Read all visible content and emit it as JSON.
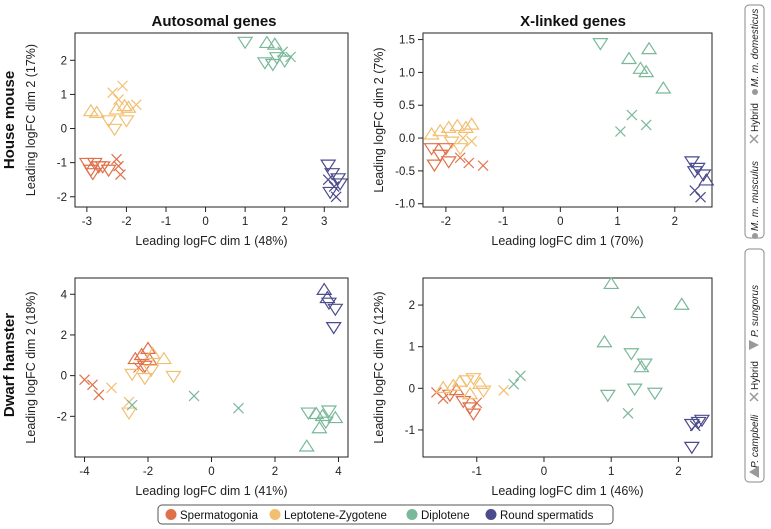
{
  "rows": [
    {
      "label": "House mouse",
      "legend": {
        "left": "M. m. musculus",
        "middle": "Hybrid",
        "right": "M. m. domesticus"
      }
    },
    {
      "label": "Dwarf hamster",
      "legend": {
        "left": "P. campbelli",
        "middle": "Hybrid",
        "right": "P. sungorus"
      }
    }
  ],
  "columns": [
    "Autosomal genes",
    "X-linked genes"
  ],
  "colors": {
    "Spermatogonia": "#e0704a",
    "Leptotene-Zygotene": "#f2bf70",
    "Diplotene": "#7ab89a",
    "Round spermatids": "#4a4a8c",
    "legend_symbol": "#999999",
    "axis": "#222222"
  },
  "legend": {
    "items": [
      {
        "label": "Spermatogonia",
        "color": "#e0704a"
      },
      {
        "label": "Leptotene-Zygotene",
        "color": "#f2bf70"
      },
      {
        "label": "Diplotene",
        "color": "#7ab89a"
      },
      {
        "label": "Round spermatids",
        "color": "#4a4a8c"
      }
    ]
  },
  "chart_data": [
    {
      "type": "scatter",
      "title": "Autosomal genes",
      "row": "House mouse",
      "xlabel": "Leading logFC dim 1 (48%)",
      "ylabel": "Leading logFC dim 2 (17%)",
      "xlim": [
        -3.3,
        3.6
      ],
      "ylim": [
        -2.3,
        2.8
      ],
      "xticks": [
        -3,
        -2,
        -1,
        0,
        1,
        2,
        3
      ],
      "yticks": [
        -2,
        -1,
        0,
        1,
        2
      ],
      "points": [
        {
          "x": -3.0,
          "y": -1.0,
          "g": "Spermatogonia",
          "m": "down"
        },
        {
          "x": -2.9,
          "y": -1.2,
          "g": "Spermatogonia",
          "m": "down"
        },
        {
          "x": -2.8,
          "y": -1.0,
          "g": "Spermatogonia",
          "m": "down"
        },
        {
          "x": -2.7,
          "y": -1.1,
          "g": "Spermatogonia",
          "m": "down"
        },
        {
          "x": -2.6,
          "y": -1.1,
          "g": "Spermatogonia",
          "m": "down"
        },
        {
          "x": -2.45,
          "y": -1.2,
          "g": "Spermatogonia",
          "m": "down"
        },
        {
          "x": -2.25,
          "y": -0.9,
          "g": "Spermatogonia",
          "m": "x"
        },
        {
          "x": -2.2,
          "y": -1.1,
          "g": "Spermatogonia",
          "m": "x"
        },
        {
          "x": -2.15,
          "y": -1.35,
          "g": "Spermatogonia",
          "m": "x"
        },
        {
          "x": -2.85,
          "y": -1.3,
          "g": "Spermatogonia",
          "m": "down"
        },
        {
          "x": -2.9,
          "y": 0.5,
          "g": "Leptotene-Zygotene",
          "m": "up"
        },
        {
          "x": -2.75,
          "y": 0.45,
          "g": "Leptotene-Zygotene",
          "m": "up"
        },
        {
          "x": -2.35,
          "y": 1.05,
          "g": "Leptotene-Zygotene",
          "m": "x"
        },
        {
          "x": -2.1,
          "y": 1.25,
          "g": "Leptotene-Zygotene",
          "m": "x"
        },
        {
          "x": -2.2,
          "y": 0.85,
          "g": "Leptotene-Zygotene",
          "m": "x"
        },
        {
          "x": -2.05,
          "y": 0.65,
          "g": "Leptotene-Zygotene",
          "m": "up"
        },
        {
          "x": -2.25,
          "y": 0.55,
          "g": "Leptotene-Zygotene",
          "m": "up"
        },
        {
          "x": -1.95,
          "y": 0.6,
          "g": "Leptotene-Zygotene",
          "m": "up"
        },
        {
          "x": -1.75,
          "y": 0.7,
          "g": "Leptotene-Zygotene",
          "m": "x"
        },
        {
          "x": -2.3,
          "y": 0.0,
          "g": "Leptotene-Zygotene",
          "m": "down"
        },
        {
          "x": -2.0,
          "y": 0.25,
          "g": "Leptotene-Zygotene",
          "m": "down"
        },
        {
          "x": -2.45,
          "y": 0.25,
          "g": "Leptotene-Zygotene",
          "m": "down"
        },
        {
          "x": 1.0,
          "y": 2.55,
          "g": "Diplotene",
          "m": "down"
        },
        {
          "x": 1.5,
          "y": 1.95,
          "g": "Diplotene",
          "m": "down"
        },
        {
          "x": 1.55,
          "y": 2.5,
          "g": "Diplotene",
          "m": "up"
        },
        {
          "x": 1.75,
          "y": 2.45,
          "g": "Diplotene",
          "m": "up"
        },
        {
          "x": 1.8,
          "y": 2.1,
          "g": "Diplotene",
          "m": "down"
        },
        {
          "x": 1.95,
          "y": 2.25,
          "g": "Diplotene",
          "m": "x"
        },
        {
          "x": 2.0,
          "y": 2.0,
          "g": "Diplotene",
          "m": "down"
        },
        {
          "x": 1.7,
          "y": 1.9,
          "g": "Diplotene",
          "m": "down"
        },
        {
          "x": 2.15,
          "y": 2.1,
          "g": "Diplotene",
          "m": "x"
        },
        {
          "x": 3.1,
          "y": -1.05,
          "g": "Round spermatids",
          "m": "down"
        },
        {
          "x": 3.2,
          "y": -1.3,
          "g": "Round spermatids",
          "m": "down"
        },
        {
          "x": 3.35,
          "y": -1.45,
          "g": "Round spermatids",
          "m": "down"
        },
        {
          "x": 3.1,
          "y": -1.5,
          "g": "Round spermatids",
          "m": "x"
        },
        {
          "x": 3.25,
          "y": -1.7,
          "g": "Round spermatids",
          "m": "x"
        },
        {
          "x": 3.15,
          "y": -1.85,
          "g": "Round spermatids",
          "m": "down"
        },
        {
          "x": 3.3,
          "y": -2.0,
          "g": "Round spermatids",
          "m": "x"
        },
        {
          "x": 3.4,
          "y": -1.6,
          "g": "Round spermatids",
          "m": "down"
        }
      ]
    },
    {
      "type": "scatter",
      "title": "X-linked genes",
      "row": "House mouse",
      "xlabel": "Leading logFC dim 1 (70%)",
      "ylabel": "Leading logFC dim 2 (7%)",
      "xlim": [
        -2.4,
        2.65
      ],
      "ylim": [
        -1.05,
        1.6
      ],
      "xticks": [
        -2,
        -1,
        0,
        1,
        2
      ],
      "yticks": [
        -1.0,
        -0.5,
        0.0,
        0.5,
        1.0,
        1.5
      ],
      "ytick_labels": [
        "-1.0",
        "-0.5",
        "0.0",
        "0.5",
        "1.0",
        "1.5"
      ],
      "points": [
        {
          "x": -2.25,
          "y": 0.05,
          "g": "Leptotene-Zygotene",
          "m": "up"
        },
        {
          "x": -2.1,
          "y": 0.1,
          "g": "Leptotene-Zygotene",
          "m": "up"
        },
        {
          "x": -1.95,
          "y": 0.15,
          "g": "Leptotene-Zygotene",
          "m": "up"
        },
        {
          "x": -1.8,
          "y": 0.18,
          "g": "Leptotene-Zygotene",
          "m": "up"
        },
        {
          "x": -1.65,
          "y": 0.15,
          "g": "Leptotene-Zygotene",
          "m": "up"
        },
        {
          "x": -1.55,
          "y": 0.2,
          "g": "Leptotene-Zygotene",
          "m": "up"
        },
        {
          "x": -1.7,
          "y": 0.0,
          "g": "Leptotene-Zygotene",
          "m": "x"
        },
        {
          "x": -1.55,
          "y": -0.05,
          "g": "Leptotene-Zygotene",
          "m": "x"
        },
        {
          "x": -1.9,
          "y": -0.05,
          "g": "Leptotene-Zygotene",
          "m": "down"
        },
        {
          "x": -1.75,
          "y": -0.15,
          "g": "Leptotene-Zygotene",
          "m": "down"
        },
        {
          "x": -2.25,
          "y": -0.15,
          "g": "Spermatogonia",
          "m": "down"
        },
        {
          "x": -2.1,
          "y": -0.25,
          "g": "Spermatogonia",
          "m": "down"
        },
        {
          "x": -1.95,
          "y": -0.35,
          "g": "Spermatogonia",
          "m": "down"
        },
        {
          "x": -2.0,
          "y": -0.15,
          "g": "Spermatogonia",
          "m": "down"
        },
        {
          "x": -1.75,
          "y": -0.3,
          "g": "Spermatogonia",
          "m": "x"
        },
        {
          "x": -1.6,
          "y": -0.38,
          "g": "Spermatogonia",
          "m": "x"
        },
        {
          "x": -1.35,
          "y": -0.42,
          "g": "Spermatogonia",
          "m": "x"
        },
        {
          "x": -2.2,
          "y": -0.4,
          "g": "Spermatogonia",
          "m": "down"
        },
        {
          "x": 0.7,
          "y": 1.45,
          "g": "Diplotene",
          "m": "down"
        },
        {
          "x": 1.55,
          "y": 1.35,
          "g": "Diplotene",
          "m": "up"
        },
        {
          "x": 1.2,
          "y": 1.2,
          "g": "Diplotene",
          "m": "up"
        },
        {
          "x": 1.4,
          "y": 1.05,
          "g": "Diplotene",
          "m": "up"
        },
        {
          "x": 1.5,
          "y": 1.0,
          "g": "Diplotene",
          "m": "up"
        },
        {
          "x": 1.8,
          "y": 0.75,
          "g": "Diplotene",
          "m": "up"
        },
        {
          "x": 1.25,
          "y": 0.35,
          "g": "Diplotene",
          "m": "x"
        },
        {
          "x": 1.5,
          "y": 0.2,
          "g": "Diplotene",
          "m": "x"
        },
        {
          "x": 1.05,
          "y": 0.1,
          "g": "Diplotene",
          "m": "x"
        },
        {
          "x": 2.3,
          "y": -0.35,
          "g": "Round spermatids",
          "m": "down"
        },
        {
          "x": 2.4,
          "y": -0.45,
          "g": "Round spermatids",
          "m": "down"
        },
        {
          "x": 2.5,
          "y": -0.55,
          "g": "Round spermatids",
          "m": "down"
        },
        {
          "x": 2.35,
          "y": -0.5,
          "g": "Round spermatids",
          "m": "down"
        },
        {
          "x": 2.55,
          "y": -0.65,
          "g": "Round spermatids",
          "m": "up"
        },
        {
          "x": 2.35,
          "y": -0.8,
          "g": "Round spermatids",
          "m": "x"
        },
        {
          "x": 2.45,
          "y": -0.9,
          "g": "Round spermatids",
          "m": "x"
        }
      ]
    },
    {
      "type": "scatter",
      "title": "Autosomal genes",
      "row": "Dwarf hamster",
      "xlabel": "Leading logFC dim 1 (41%)",
      "ylabel": "Leading logFC dim 2 (18%)",
      "xlim": [
        -4.3,
        4.3
      ],
      "ylim": [
        -4.0,
        4.8
      ],
      "xticks": [
        -4,
        -2,
        0,
        2,
        4
      ],
      "yticks": [
        -2,
        0,
        2,
        4
      ],
      "points": [
        {
          "x": -4.0,
          "y": -0.2,
          "g": "Spermatogonia",
          "m": "x"
        },
        {
          "x": -3.75,
          "y": -0.45,
          "g": "Spermatogonia",
          "m": "x"
        },
        {
          "x": -3.55,
          "y": -0.95,
          "g": "Spermatogonia",
          "m": "x"
        },
        {
          "x": -3.15,
          "y": -0.6,
          "g": "Leptotene-Zygotene",
          "m": "x"
        },
        {
          "x": -2.6,
          "y": -1.3,
          "g": "Leptotene-Zygotene",
          "m": "x"
        },
        {
          "x": -2.6,
          "y": -1.8,
          "g": "Leptotene-Zygotene",
          "m": "down"
        },
        {
          "x": -2.5,
          "y": -1.45,
          "g": "Diplotene",
          "m": "x"
        },
        {
          "x": -2.4,
          "y": 0.8,
          "g": "Spermatogonia",
          "m": "up"
        },
        {
          "x": -2.2,
          "y": 1.0,
          "g": "Spermatogonia",
          "m": "up"
        },
        {
          "x": -2.0,
          "y": 1.3,
          "g": "Spermatogonia",
          "m": "up"
        },
        {
          "x": -2.1,
          "y": 0.5,
          "g": "Spermatogonia",
          "m": "down"
        },
        {
          "x": -1.95,
          "y": 0.75,
          "g": "Spermatogonia",
          "m": "up"
        },
        {
          "x": -2.3,
          "y": 0.4,
          "g": "Spermatogonia",
          "m": "x"
        },
        {
          "x": -1.85,
          "y": 1.05,
          "g": "Leptotene-Zygotene",
          "m": "up"
        },
        {
          "x": -2.5,
          "y": 0.1,
          "g": "Leptotene-Zygotene",
          "m": "down"
        },
        {
          "x": -1.9,
          "y": 0.3,
          "g": "Leptotene-Zygotene",
          "m": "down"
        },
        {
          "x": -1.5,
          "y": 0.8,
          "g": "Leptotene-Zygotene",
          "m": "up"
        },
        {
          "x": -2.1,
          "y": -0.1,
          "g": "Leptotene-Zygotene",
          "m": "down"
        },
        {
          "x": -1.2,
          "y": 0.0,
          "g": "Leptotene-Zygotene",
          "m": "down"
        },
        {
          "x": -0.55,
          "y": -1.0,
          "g": "Diplotene",
          "m": "x"
        },
        {
          "x": 0.85,
          "y": -1.6,
          "g": "Diplotene",
          "m": "x"
        },
        {
          "x": 3.05,
          "y": -1.8,
          "g": "Diplotene",
          "m": "down"
        },
        {
          "x": 3.3,
          "y": -1.9,
          "g": "Diplotene",
          "m": "up"
        },
        {
          "x": 3.5,
          "y": -2.0,
          "g": "Diplotene",
          "m": "up"
        },
        {
          "x": 3.7,
          "y": -1.7,
          "g": "Diplotene",
          "m": "down"
        },
        {
          "x": 3.9,
          "y": -2.1,
          "g": "Diplotene",
          "m": "up"
        },
        {
          "x": 3.4,
          "y": -2.6,
          "g": "Diplotene",
          "m": "up"
        },
        {
          "x": 3.6,
          "y": -2.25,
          "g": "Diplotene",
          "m": "down"
        },
        {
          "x": 3.0,
          "y": -3.5,
          "g": "Diplotene",
          "m": "up"
        },
        {
          "x": 3.55,
          "y": 4.2,
          "g": "Round spermatids",
          "m": "up"
        },
        {
          "x": 3.65,
          "y": 3.8,
          "g": "Round spermatids",
          "m": "up"
        },
        {
          "x": 3.7,
          "y": 3.6,
          "g": "Round spermatids",
          "m": "down"
        },
        {
          "x": 3.9,
          "y": 3.3,
          "g": "Round spermatids",
          "m": "down"
        },
        {
          "x": 3.85,
          "y": 2.4,
          "g": "Round spermatids",
          "m": "down"
        }
      ]
    },
    {
      "type": "scatter",
      "title": "X-linked genes",
      "row": "Dwarf hamster",
      "xlabel": "Leading logFC dim 1 (46%)",
      "ylabel": "Leading logFC dim 2 (12%)",
      "xlim": [
        -1.8,
        2.5
      ],
      "ylim": [
        -1.65,
        2.65
      ],
      "xticks": [
        -1,
        0,
        1,
        2
      ],
      "yticks": [
        -1,
        0,
        1,
        2
      ],
      "points": [
        {
          "x": -1.6,
          "y": -0.1,
          "g": "Spermatogonia",
          "m": "x"
        },
        {
          "x": -1.5,
          "y": -0.25,
          "g": "Spermatogonia",
          "m": "x"
        },
        {
          "x": -1.4,
          "y": -0.15,
          "g": "Spermatogonia",
          "m": "down"
        },
        {
          "x": -1.3,
          "y": -0.05,
          "g": "Spermatogonia",
          "m": "up"
        },
        {
          "x": -1.2,
          "y": -0.3,
          "g": "Spermatogonia",
          "m": "down"
        },
        {
          "x": -1.1,
          "y": -0.45,
          "g": "Spermatogonia",
          "m": "down"
        },
        {
          "x": -1.0,
          "y": -0.35,
          "g": "Spermatogonia",
          "m": "x"
        },
        {
          "x": -1.05,
          "y": -0.6,
          "g": "Spermatogonia",
          "m": "down"
        },
        {
          "x": -1.5,
          "y": 0.0,
          "g": "Leptotene-Zygotene",
          "m": "up"
        },
        {
          "x": -1.35,
          "y": 0.05,
          "g": "Leptotene-Zygotene",
          "m": "up"
        },
        {
          "x": -1.25,
          "y": 0.15,
          "g": "Leptotene-Zygotene",
          "m": "up"
        },
        {
          "x": -1.15,
          "y": 0.2,
          "g": "Leptotene-Zygotene",
          "m": "down"
        },
        {
          "x": -1.05,
          "y": 0.25,
          "g": "Leptotene-Zygotene",
          "m": "down"
        },
        {
          "x": -0.95,
          "y": 0.1,
          "g": "Leptotene-Zygotene",
          "m": "up"
        },
        {
          "x": -0.9,
          "y": -0.05,
          "g": "Leptotene-Zygotene",
          "m": "down"
        },
        {
          "x": -1.1,
          "y": -0.15,
          "g": "Leptotene-Zygotene",
          "m": "up"
        },
        {
          "x": -0.6,
          "y": -0.05,
          "g": "Leptotene-Zygotene",
          "m": "x"
        },
        {
          "x": -0.45,
          "y": 0.1,
          "g": "Diplotene",
          "m": "x"
        },
        {
          "x": -0.35,
          "y": 0.3,
          "g": "Diplotene",
          "m": "x"
        },
        {
          "x": 1.0,
          "y": 2.5,
          "g": "Diplotene",
          "m": "up"
        },
        {
          "x": 2.05,
          "y": 2.0,
          "g": "Diplotene",
          "m": "up"
        },
        {
          "x": 0.9,
          "y": 1.1,
          "g": "Diplotene",
          "m": "up"
        },
        {
          "x": 1.4,
          "y": 1.8,
          "g": "Diplotene",
          "m": "up"
        },
        {
          "x": 1.3,
          "y": 0.85,
          "g": "Diplotene",
          "m": "down"
        },
        {
          "x": 1.45,
          "y": 0.5,
          "g": "Diplotene",
          "m": "up"
        },
        {
          "x": 1.5,
          "y": 0.6,
          "g": "Diplotene",
          "m": "down"
        },
        {
          "x": 0.95,
          "y": -0.15,
          "g": "Diplotene",
          "m": "down"
        },
        {
          "x": 1.35,
          "y": 0.0,
          "g": "Diplotene",
          "m": "down"
        },
        {
          "x": 1.65,
          "y": -0.1,
          "g": "Diplotene",
          "m": "down"
        },
        {
          "x": 1.25,
          "y": -0.6,
          "g": "Diplotene",
          "m": "x"
        },
        {
          "x": 2.2,
          "y": -0.85,
          "g": "Round spermatids",
          "m": "down"
        },
        {
          "x": 2.3,
          "y": -0.8,
          "g": "Round spermatids",
          "m": "down"
        },
        {
          "x": 2.35,
          "y": -0.75,
          "g": "Round spermatids",
          "m": "down"
        },
        {
          "x": 2.25,
          "y": -0.9,
          "g": "Round spermatids",
          "m": "x"
        },
        {
          "x": 2.2,
          "y": -1.4,
          "g": "Round spermatids",
          "m": "down"
        }
      ]
    }
  ]
}
